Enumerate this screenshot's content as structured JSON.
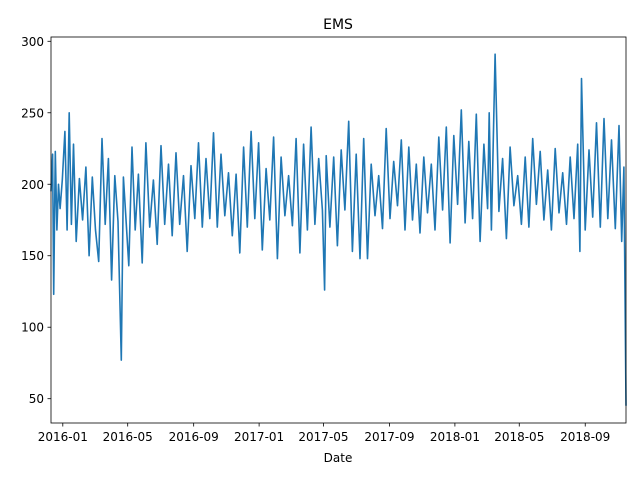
{
  "chart_data": {
    "type": "line",
    "title": "EMS",
    "xlabel": "Date",
    "ylabel": "",
    "x_range": [
      "2015-12-10",
      "2018-11-16"
    ],
    "ylim": [
      33,
      303
    ],
    "grid": false,
    "legend": "none",
    "line_color": "#1f77b4",
    "x_ticks": [
      {
        "date": "2016-01-01",
        "label": "2016-01"
      },
      {
        "date": "2016-05-01",
        "label": "2016-05"
      },
      {
        "date": "2016-09-01",
        "label": "2016-09"
      },
      {
        "date": "2017-01-01",
        "label": "2017-01"
      },
      {
        "date": "2017-05-01",
        "label": "2017-05"
      },
      {
        "date": "2017-09-01",
        "label": "2017-09"
      },
      {
        "date": "2018-01-01",
        "label": "2018-01"
      },
      {
        "date": "2018-05-01",
        "label": "2018-05"
      },
      {
        "date": "2018-09-01",
        "label": "2018-09"
      }
    ],
    "y_ticks": [
      50,
      100,
      150,
      200,
      250,
      300
    ],
    "series": [
      {
        "x": [
          "2015-12-10",
          "2015-12-13",
          "2015-12-15",
          "2015-12-18",
          "2015-12-21",
          "2015-12-24",
          "2015-12-27",
          "2015-12-31",
          "2016-01-05",
          "2016-01-09",
          "2016-01-13",
          "2016-01-17",
          "2016-01-21",
          "2016-01-26",
          "2016-02-01",
          "2016-02-07",
          "2016-02-13",
          "2016-02-19",
          "2016-02-25",
          "2016-03-02",
          "2016-03-08",
          "2016-03-14",
          "2016-03-20",
          "2016-03-26",
          "2016-04-01",
          "2016-04-07",
          "2016-04-13",
          "2016-04-19",
          "2016-04-23",
          "2016-04-27",
          "2016-05-03",
          "2016-05-09",
          "2016-05-15",
          "2016-05-21",
          "2016-05-28",
          "2016-06-04",
          "2016-06-11",
          "2016-06-18",
          "2016-06-25",
          "2016-07-02",
          "2016-07-09",
          "2016-07-16",
          "2016-07-23",
          "2016-07-30",
          "2016-08-06",
          "2016-08-13",
          "2016-08-20",
          "2016-08-27",
          "2016-09-03",
          "2016-09-10",
          "2016-09-17",
          "2016-09-24",
          "2016-10-01",
          "2016-10-08",
          "2016-10-15",
          "2016-10-22",
          "2016-10-29",
          "2016-11-05",
          "2016-11-12",
          "2016-11-19",
          "2016-11-26",
          "2016-12-03",
          "2016-12-10",
          "2016-12-17",
          "2016-12-24",
          "2016-12-31",
          "2017-01-07",
          "2017-01-14",
          "2017-01-21",
          "2017-01-28",
          "2017-02-04",
          "2017-02-11",
          "2017-02-18",
          "2017-02-25",
          "2017-03-04",
          "2017-03-11",
          "2017-03-18",
          "2017-03-25",
          "2017-04-01",
          "2017-04-08",
          "2017-04-15",
          "2017-04-22",
          "2017-04-29",
          "2017-05-03",
          "2017-05-06",
          "2017-05-13",
          "2017-05-20",
          "2017-05-27",
          "2017-06-03",
          "2017-06-10",
          "2017-06-17",
          "2017-06-24",
          "2017-07-01",
          "2017-07-08",
          "2017-07-15",
          "2017-07-22",
          "2017-07-29",
          "2017-08-05",
          "2017-08-12",
          "2017-08-19",
          "2017-08-26",
          "2017-09-02",
          "2017-09-09",
          "2017-09-16",
          "2017-09-23",
          "2017-09-30",
          "2017-10-07",
          "2017-10-14",
          "2017-10-21",
          "2017-10-28",
          "2017-11-04",
          "2017-11-11",
          "2017-11-18",
          "2017-11-25",
          "2017-12-02",
          "2017-12-09",
          "2017-12-16",
          "2017-12-23",
          "2017-12-30",
          "2018-01-06",
          "2018-01-13",
          "2018-01-20",
          "2018-01-27",
          "2018-02-03",
          "2018-02-10",
          "2018-02-17",
          "2018-02-24",
          "2018-03-03",
          "2018-03-06",
          "2018-03-10",
          "2018-03-17",
          "2018-03-24",
          "2018-03-31",
          "2018-04-07",
          "2018-04-14",
          "2018-04-21",
          "2018-04-28",
          "2018-05-05",
          "2018-05-12",
          "2018-05-19",
          "2018-05-26",
          "2018-06-02",
          "2018-06-09",
          "2018-06-16",
          "2018-06-23",
          "2018-06-30",
          "2018-07-07",
          "2018-07-14",
          "2018-07-21",
          "2018-07-28",
          "2018-08-04",
          "2018-08-11",
          "2018-08-18",
          "2018-08-22",
          "2018-08-25",
          "2018-09-01",
          "2018-09-08",
          "2018-09-15",
          "2018-09-22",
          "2018-09-29",
          "2018-10-06",
          "2018-10-13",
          "2018-10-20",
          "2018-10-27",
          "2018-11-03",
          "2018-11-08",
          "2018-11-12",
          "2018-11-16"
        ],
        "y": [
          195,
          221,
          123,
          223,
          168,
          200,
          183,
          203,
          237,
          168,
          250,
          172,
          228,
          160,
          204,
          175,
          212,
          150,
          205,
          168,
          146,
          232,
          172,
          218,
          133,
          206,
          174,
          77,
          205,
          180,
          143,
          226,
          168,
          207,
          145,
          229,
          170,
          203,
          158,
          227,
          172,
          214,
          164,
          222,
          172,
          206,
          153,
          213,
          176,
          229,
          170,
          218,
          176,
          236,
          170,
          221,
          178,
          208,
          164,
          207,
          152,
          226,
          170,
          237,
          176,
          229,
          154,
          211,
          175,
          233,
          148,
          219,
          178,
          206,
          171,
          232,
          152,
          228,
          168,
          240,
          172,
          218,
          182,
          126,
          220,
          170,
          219,
          157,
          224,
          182,
          244,
          153,
          221,
          148,
          232,
          148,
          214,
          178,
          206,
          169,
          239,
          176,
          216,
          185,
          231,
          168,
          226,
          175,
          214,
          166,
          219,
          180,
          214,
          168,
          233,
          182,
          240,
          159,
          234,
          186,
          252,
          173,
          230,
          176,
          249,
          160,
          228,
          183,
          250,
          168,
          291,
          181,
          218,
          162,
          226,
          185,
          206,
          172,
          219,
          170,
          232,
          186,
          223,
          175,
          210,
          168,
          225,
          180,
          208,
          172,
          219,
          176,
          228,
          153,
          274,
          168,
          224,
          177,
          243,
          170,
          246,
          176,
          231,
          169,
          241,
          160,
          212,
          45
        ]
      }
    ]
  }
}
